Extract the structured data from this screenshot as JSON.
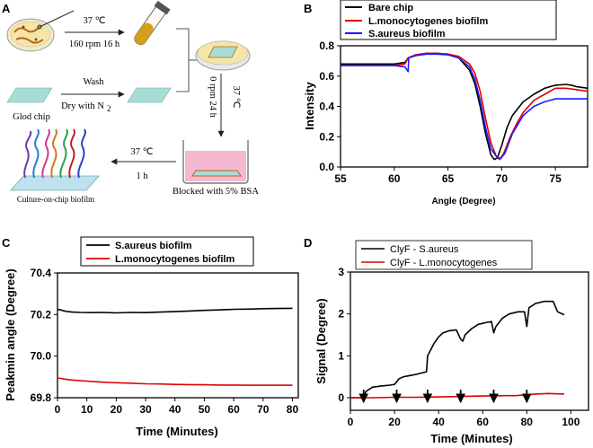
{
  "panels": {
    "a": "A",
    "b": "B",
    "c": "C",
    "d": "D"
  },
  "schematic": {
    "step1_top": "37 ℃",
    "step1_bottom": "160 rpm 16 h",
    "wash": "Wash",
    "dry_prefix": "Dry with N",
    "dry_sub": "2",
    "gold_chip": "Glod chip",
    "step2_temp": "37 ℃",
    "step2_cond": "0 rpm 24 h",
    "blocked": "Blocked with 5% BSA",
    "step3_temp": "37 ℃",
    "step3_time": "1 h",
    "culture": "Culture-on-chip biofilm",
    "colors": {
      "agar": "#f5e6a8",
      "chip": "#a8ddd4",
      "bsa": "#f5b8d0",
      "chip_border": "#b5651d"
    }
  },
  "chart_data": [
    {
      "id": "B",
      "type": "line",
      "xlabel": "Angle (Degree)",
      "ylabel": "Intensity",
      "xlim": [
        55,
        78
      ],
      "ylim": [
        0.0,
        0.8
      ],
      "xticks": [
        55,
        60,
        65,
        70,
        75
      ],
      "yticks": [
        0.0,
        0.2,
        0.4,
        0.6,
        0.8
      ],
      "legend_position": "top-left",
      "series": [
        {
          "name": "Bare chip",
          "color": "#000000",
          "x": [
            55,
            58,
            60,
            61,
            61.3,
            62,
            63,
            64,
            65,
            66,
            67,
            67.5,
            68,
            68.5,
            69,
            69.3,
            69.6,
            70,
            70.5,
            71,
            72,
            73,
            74,
            75,
            76,
            76.5,
            77,
            78
          ],
          "y": [
            0.68,
            0.68,
            0.68,
            0.69,
            0.72,
            0.74,
            0.75,
            0.75,
            0.745,
            0.72,
            0.64,
            0.55,
            0.4,
            0.22,
            0.08,
            0.05,
            0.06,
            0.14,
            0.26,
            0.34,
            0.43,
            0.48,
            0.52,
            0.54,
            0.545,
            0.54,
            0.53,
            0.52
          ]
        },
        {
          "name": "L.monocytogenes biofilm",
          "color": "#e00000",
          "x": [
            55,
            58,
            60,
            61,
            61.3,
            62,
            63,
            64,
            65,
            66,
            67,
            67.5,
            68,
            68.5,
            69,
            69.5,
            69.8,
            70.2,
            70.8,
            71.5,
            72,
            73,
            74,
            75,
            76,
            77,
            78
          ],
          "y": [
            0.67,
            0.67,
            0.67,
            0.68,
            0.72,
            0.74,
            0.75,
            0.75,
            0.745,
            0.73,
            0.68,
            0.62,
            0.5,
            0.32,
            0.16,
            0.07,
            0.05,
            0.09,
            0.2,
            0.3,
            0.36,
            0.44,
            0.48,
            0.52,
            0.52,
            0.51,
            0.5
          ]
        },
        {
          "name": "S.aureus biofilm",
          "color": "#1a1aff",
          "x": [
            55,
            58,
            60,
            61,
            61.3,
            61.35,
            62,
            63,
            64,
            65,
            66,
            67,
            67.5,
            68,
            68.5,
            69,
            69.5,
            69.9,
            70.3,
            71,
            72,
            73,
            74,
            75,
            76,
            77,
            78
          ],
          "y": [
            0.67,
            0.67,
            0.67,
            0.66,
            0.63,
            0.72,
            0.735,
            0.745,
            0.745,
            0.74,
            0.72,
            0.66,
            0.58,
            0.44,
            0.26,
            0.12,
            0.07,
            0.055,
            0.09,
            0.22,
            0.34,
            0.4,
            0.43,
            0.45,
            0.45,
            0.45,
            0.45
          ]
        }
      ]
    },
    {
      "id": "C",
      "type": "line",
      "xlabel": "Time (Minutes)",
      "ylabel": "Peakmin angle (Degree)",
      "xlim": [
        0,
        82
      ],
      "ylim": [
        69.8,
        70.4
      ],
      "xticks": [
        0,
        10,
        20,
        30,
        40,
        50,
        60,
        70,
        80
      ],
      "yticks": [
        69.8,
        70.0,
        70.2,
        70.4
      ],
      "legend_position": "top",
      "series": [
        {
          "name": "S.aureus biofilm",
          "color": "#000000",
          "x": [
            0,
            1,
            3,
            5,
            8,
            12,
            15,
            20,
            25,
            30,
            35,
            40,
            45,
            50,
            55,
            60,
            65,
            70,
            75,
            80
          ],
          "y": [
            70.225,
            70.222,
            70.215,
            70.212,
            70.21,
            70.209,
            70.21,
            70.208,
            70.21,
            70.209,
            70.212,
            70.214,
            70.217,
            70.22,
            70.222,
            70.225,
            70.226,
            70.228,
            70.229,
            70.23
          ]
        },
        {
          "name": "L.monocytogenes biofilm",
          "color": "#e00000",
          "x": [
            0,
            1,
            3,
            5,
            8,
            12,
            15,
            20,
            25,
            30,
            35,
            40,
            45,
            50,
            55,
            60,
            65,
            70,
            75,
            80
          ],
          "y": [
            69.895,
            69.893,
            69.888,
            69.885,
            69.882,
            69.878,
            69.875,
            69.872,
            69.87,
            69.867,
            69.866,
            69.864,
            69.863,
            69.862,
            69.861,
            69.861,
            69.86,
            69.86,
            69.86,
            69.86
          ]
        }
      ]
    },
    {
      "id": "D",
      "type": "line",
      "xlabel": "Time (Minutes)",
      "ylabel": "Signal (Degree)",
      "xlim": [
        0,
        108
      ],
      "ylim": [
        -0.3,
        3.0
      ],
      "xticks": [
        0,
        20,
        40,
        60,
        80,
        100
      ],
      "yticks": [
        0,
        1,
        2,
        3
      ],
      "arrow_times": [
        6,
        21,
        35,
        50,
        65,
        80
      ],
      "legend_position": "top",
      "series": [
        {
          "name": "ClyF - S.aureus",
          "color": "#000000",
          "x": [
            0,
            6,
            7,
            10,
            14,
            18,
            20,
            21,
            22,
            24,
            27,
            30,
            33,
            34.5,
            35,
            36,
            38,
            40,
            42,
            45,
            48,
            50,
            51,
            52,
            55,
            58,
            62,
            64,
            65,
            66,
            69,
            72,
            76,
            79,
            80,
            81,
            84,
            88,
            92,
            94,
            97
          ],
          "y": [
            0,
            0,
            0.15,
            0.25,
            0.28,
            0.3,
            0.32,
            0.38,
            0.45,
            0.5,
            0.53,
            0.56,
            0.6,
            0.62,
            1.0,
            1.1,
            1.3,
            1.45,
            1.55,
            1.6,
            1.62,
            1.4,
            1.35,
            1.5,
            1.65,
            1.75,
            1.8,
            1.82,
            1.55,
            1.7,
            1.9,
            2.0,
            2.05,
            2.05,
            1.7,
            2.15,
            2.25,
            2.3,
            2.3,
            2.05,
            1.98
          ]
        },
        {
          "name": "ClyF - L.monocytogenes",
          "color": "#e00000",
          "x": [
            0,
            10,
            20,
            30,
            40,
            50,
            60,
            70,
            75,
            80,
            85,
            90,
            95,
            97
          ],
          "y": [
            0,
            0,
            0.01,
            0.01,
            0.02,
            0.03,
            0.04,
            0.05,
            0.05,
            0.07,
            0.09,
            0.1,
            0.09,
            0.09
          ]
        }
      ]
    }
  ]
}
